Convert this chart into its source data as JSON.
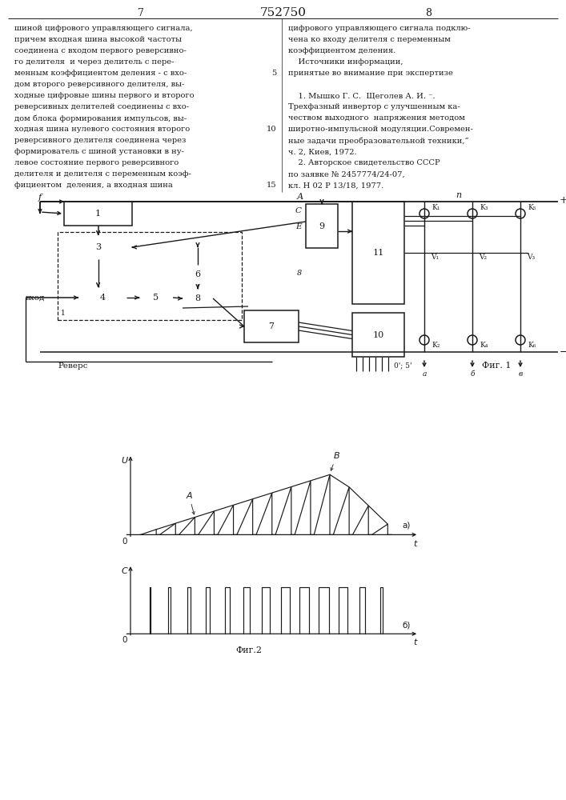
{
  "page_number_left": "7",
  "page_number_center": "752750",
  "page_number_right": "8",
  "bg_color": "#ffffff",
  "text_color": "#1a1a1a",
  "line_color": "#1a1a1a",
  "left_text_lines": [
    "шиной цифрового управляющего сигнала,",
    "причем входная шина высокой частоты",
    "соединена с входом первого реверсивно-",
    "го делителя  и через делитель с пере-",
    "менным коэффициентом деления - с вхо-",
    "дом второго реверсивного делителя, вы-",
    "ходные цифровые шины первого и второго",
    "реверсивных делителей соединены с вхо-",
    "дом блока формирования импульсов, вы-",
    "ходная шина нулевого состояния второго",
    "реверсивного делителя соединена через",
    "формирователь с шиной установки в ну-",
    "левое состояние первого реверсивного",
    "делителя и делителя с переменным коэф-",
    "фициентом  деления, а входная шина"
  ],
  "right_text_lines": [
    "цифрового управляющего сигнала подклю-",
    "чена ко входу делителя с переменным",
    "коэффициентом деления.",
    "    Источники информации,",
    "принятые во внимание при экспертизе",
    "",
    "    1. Мышко Г. С.  Щеголев А. И. ⁻.",
    "Трехфазный инвертор с улучшенным ка-",
    "чеством выходного  напряжения методом",
    "широтно-импульсной модуляции.Современ-",
    "ные задачи преобразовательной техники,“",
    "ч. 2, Киев, 1972.",
    "    2. Авторское свидетельство СССР",
    "по заявке № 2457774/24-07,",
    "кл. Н 02 Р 13/18, 1977."
  ],
  "line_num_positions": {
    "4": "5",
    "9": "10",
    "14": "15"
  }
}
